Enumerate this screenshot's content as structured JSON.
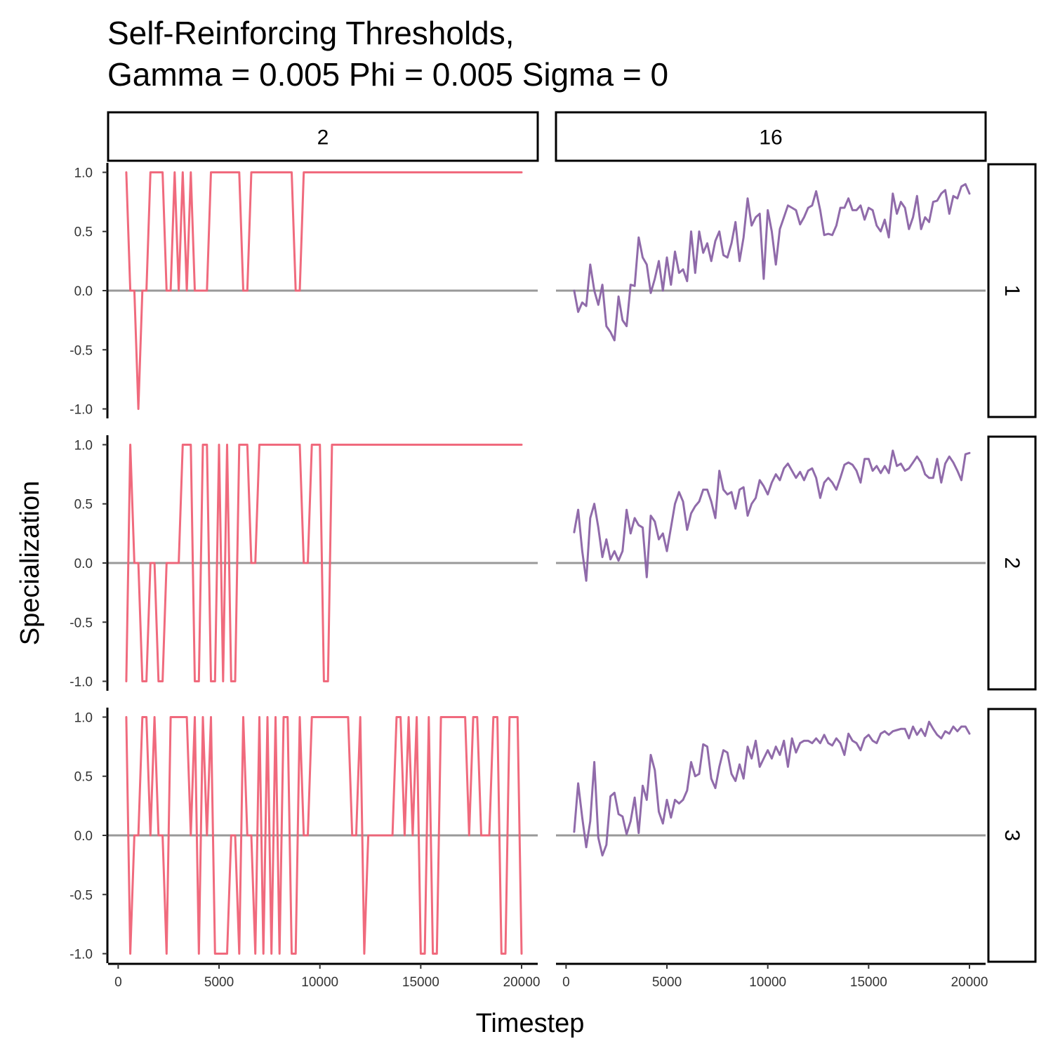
{
  "chart_data": {
    "type": "line",
    "title_lines": [
      "Self-Reinforcing Thresholds,",
      "Gamma = 0.005 Phi =  0.005 Sigma = 0"
    ],
    "xlabel": "Timestep",
    "ylabel": "Specialization",
    "xlim": [
      -500,
      20800
    ],
    "ylim": [
      -1.08,
      1.08
    ],
    "x_ticks": [
      0,
      5000,
      10000,
      15000,
      20000
    ],
    "y_ticks": [
      -1.0,
      -0.5,
      0.0,
      0.5,
      1.0
    ],
    "y_tick_labels": [
      "-1.0",
      "-0.5",
      "0.0",
      "0.5",
      "1.0"
    ],
    "reference_line_y": 0,
    "grid": false,
    "legend": "none",
    "col_facets": [
      "2",
      "16"
    ],
    "row_facets": [
      "1",
      "2",
      "3"
    ],
    "colors": {
      "2": "#ef6276",
      "16": "#8a63a5",
      "reference": "#999999"
    },
    "panels": [
      {
        "col": "2",
        "row": "1",
        "x": [
          400,
          600,
          800,
          1000,
          1200,
          1400,
          1600,
          1800,
          2000,
          2200,
          2400,
          2600,
          2800,
          3000,
          3200,
          3400,
          3600,
          3800,
          4000,
          4200,
          4400,
          4600,
          4800,
          5000,
          5200,
          5400,
          5600,
          5800,
          6000,
          6200,
          6400,
          6600,
          6800,
          7000,
          7200,
          7400,
          7600,
          7800,
          8000,
          8200,
          8400,
          8600,
          8800,
          9000,
          9200,
          9400,
          20000
        ],
        "y": [
          1,
          0,
          0,
          -1,
          0,
          0,
          1,
          1,
          1,
          1,
          0,
          0,
          1,
          0,
          1,
          0,
          1,
          0,
          0,
          0,
          0,
          1,
          1,
          1,
          1,
          1,
          1,
          1,
          1,
          0,
          0,
          1,
          1,
          1,
          1,
          1,
          1,
          1,
          1,
          1,
          1,
          1,
          0,
          0,
          1,
          1,
          1
        ]
      },
      {
        "col": "2",
        "row": "2",
        "x": [
          400,
          600,
          800,
          1000,
          1200,
          1400,
          1600,
          1800,
          2000,
          2200,
          2400,
          2600,
          2800,
          3000,
          3200,
          3400,
          3600,
          3800,
          4000,
          4200,
          4400,
          4600,
          4800,
          5000,
          5200,
          5400,
          5600,
          5800,
          6000,
          6200,
          6400,
          6600,
          6800,
          7000,
          7200,
          7400,
          7600,
          7800,
          8000,
          8200,
          8400,
          8600,
          8800,
          9000,
          9200,
          9400,
          9600,
          9800,
          10000,
          10200,
          10400,
          10600,
          20000
        ],
        "y": [
          -1,
          1,
          0,
          0,
          -1,
          -1,
          0,
          0,
          -1,
          -1,
          0,
          0,
          0,
          0,
          1,
          1,
          1,
          -1,
          -1,
          1,
          1,
          -1,
          -1,
          1,
          -1,
          1,
          -1,
          -1,
          1,
          1,
          1,
          0,
          0,
          1,
          1,
          1,
          1,
          1,
          1,
          1,
          1,
          1,
          1,
          1,
          0,
          0,
          1,
          1,
          1,
          -1,
          -1,
          1,
          1
        ]
      },
      {
        "col": "2",
        "row": "3",
        "x": [
          400,
          600,
          800,
          1000,
          1200,
          1400,
          1600,
          1800,
          2000,
          2200,
          2400,
          2600,
          2800,
          3000,
          3200,
          3400,
          3600,
          3800,
          4000,
          4200,
          4400,
          4600,
          4800,
          5000,
          5200,
          5400,
          5600,
          5800,
          6000,
          6200,
          6400,
          6600,
          6800,
          7000,
          7200,
          7400,
          7600,
          7800,
          8000,
          8200,
          8400,
          8600,
          8800,
          9000,
          9200,
          9400,
          9600,
          9800,
          10000,
          10200,
          10400,
          10600,
          10800,
          11000,
          11200,
          11400,
          11600,
          11800,
          12000,
          12200,
          12400,
          12600,
          12800,
          13000,
          13200,
          13400,
          13600,
          13800,
          14000,
          14200,
          14400,
          14600,
          14800,
          15000,
          15200,
          15400,
          15600,
          15800,
          16000,
          16200,
          16400,
          16600,
          16800,
          17000,
          17200,
          17400,
          17600,
          17800,
          18000,
          18200,
          18400,
          18600,
          18800,
          19000,
          19200,
          19400,
          19600,
          19800,
          20000
        ],
        "y": [
          1,
          -1,
          0,
          0,
          1,
          1,
          0,
          1,
          0,
          0,
          -1,
          1,
          1,
          1,
          1,
          1,
          0,
          1,
          -1,
          1,
          0,
          1,
          -1,
          -1,
          -1,
          -1,
          0,
          0,
          -1,
          1,
          0,
          0,
          -1,
          1,
          -1,
          1,
          -1,
          1,
          -1,
          1,
          1,
          -1,
          -1,
          1,
          0,
          0,
          1,
          1,
          1,
          1,
          1,
          1,
          1,
          1,
          1,
          1,
          0,
          0,
          1,
          -1,
          0,
          0,
          0,
          0,
          0,
          0,
          0,
          1,
          1,
          0,
          1,
          0,
          1,
          -1,
          -1,
          1,
          -1,
          -1,
          1,
          1,
          1,
          1,
          1,
          1,
          1,
          0,
          1,
          1,
          0,
          0,
          0,
          1,
          1,
          -1,
          -1,
          1,
          1,
          1,
          -1
        ]
      },
      {
        "col": "16",
        "row": "1",
        "x": [
          400,
          600,
          800,
          1000,
          1200,
          1400,
          1600,
          1800,
          2000,
          2200,
          2400,
          2600,
          2800,
          3000,
          3200,
          3400,
          3600,
          3800,
          4000,
          4200,
          4400,
          4600,
          4800,
          5000,
          5200,
          5400,
          5600,
          5800,
          6000,
          6200,
          6400,
          6600,
          6800,
          7000,
          7200,
          7400,
          7600,
          7800,
          8000,
          8200,
          8400,
          8600,
          8800,
          9000,
          9200,
          9400,
          9600,
          9800,
          10000,
          10200,
          10400,
          10600,
          10800,
          11000,
          11200,
          11400,
          11600,
          11800,
          12000,
          12200,
          12400,
          12600,
          12800,
          13000,
          13200,
          13400,
          13600,
          13800,
          14000,
          14200,
          14400,
          14600,
          14800,
          15000,
          15200,
          15400,
          15600,
          15800,
          16000,
          16200,
          16400,
          16600,
          16800,
          17000,
          17200,
          17400,
          17600,
          17800,
          18000,
          18200,
          18400,
          18600,
          18800,
          19000,
          19200,
          19400,
          19600,
          19800,
          20000
        ],
        "y": [
          0.0,
          -0.18,
          -0.1,
          -0.13,
          0.22,
          0.0,
          -0.12,
          0.05,
          -0.3,
          -0.35,
          -0.42,
          -0.05,
          -0.25,
          -0.3,
          0.05,
          0.04,
          0.45,
          0.28,
          0.22,
          -0.02,
          0.1,
          0.25,
          0.0,
          0.28,
          0.05,
          0.33,
          0.15,
          0.18,
          0.08,
          0.5,
          0.15,
          0.5,
          0.32,
          0.4,
          0.25,
          0.42,
          0.5,
          0.3,
          0.28,
          0.4,
          0.58,
          0.25,
          0.45,
          0.78,
          0.55,
          0.62,
          0.65,
          0.1,
          0.68,
          0.5,
          0.22,
          0.52,
          0.62,
          0.72,
          0.7,
          0.68,
          0.56,
          0.62,
          0.7,
          0.72,
          0.84,
          0.68,
          0.47,
          0.48,
          0.47,
          0.55,
          0.7,
          0.7,
          0.78,
          0.68,
          0.68,
          0.72,
          0.6,
          0.7,
          0.68,
          0.55,
          0.5,
          0.6,
          0.45,
          0.82,
          0.65,
          0.75,
          0.7,
          0.52,
          0.62,
          0.8,
          0.52,
          0.62,
          0.58,
          0.75,
          0.76,
          0.82,
          0.85,
          0.65,
          0.8,
          0.78,
          0.88,
          0.9,
          0.82
        ]
      },
      {
        "col": "16",
        "row": "2",
        "x": [
          400,
          600,
          800,
          1000,
          1200,
          1400,
          1600,
          1800,
          2000,
          2200,
          2400,
          2600,
          2800,
          3000,
          3200,
          3400,
          3600,
          3800,
          4000,
          4200,
          4400,
          4600,
          4800,
          5000,
          5200,
          5400,
          5600,
          5800,
          6000,
          6200,
          6400,
          6600,
          6800,
          7000,
          7200,
          7400,
          7600,
          7800,
          8000,
          8200,
          8400,
          8600,
          8800,
          9000,
          9200,
          9400,
          9600,
          9800,
          10000,
          10200,
          10400,
          10600,
          10800,
          11000,
          11200,
          11400,
          11600,
          11800,
          12000,
          12200,
          12400,
          12600,
          12800,
          13000,
          13200,
          13400,
          13600,
          13800,
          14000,
          14200,
          14400,
          14600,
          14800,
          15000,
          15200,
          15400,
          15600,
          15800,
          16000,
          16200,
          16400,
          16600,
          16800,
          17000,
          17200,
          17400,
          17600,
          17800,
          18000,
          18200,
          18400,
          18600,
          18800,
          19000,
          19200,
          19400,
          19600,
          19800,
          20000
        ],
        "y": [
          0.26,
          0.45,
          0.1,
          -0.15,
          0.38,
          0.5,
          0.3,
          0.05,
          0.2,
          0.03,
          0.1,
          0.02,
          0.1,
          0.45,
          0.25,
          0.38,
          0.32,
          0.3,
          -0.12,
          0.4,
          0.35,
          0.2,
          0.25,
          0.1,
          0.3,
          0.5,
          0.6,
          0.52,
          0.28,
          0.42,
          0.48,
          0.52,
          0.62,
          0.62,
          0.52,
          0.38,
          0.78,
          0.62,
          0.58,
          0.6,
          0.46,
          0.62,
          0.64,
          0.4,
          0.5,
          0.55,
          0.7,
          0.65,
          0.58,
          0.68,
          0.75,
          0.7,
          0.8,
          0.84,
          0.78,
          0.72,
          0.77,
          0.7,
          0.78,
          0.8,
          0.72,
          0.55,
          0.68,
          0.72,
          0.68,
          0.62,
          0.72,
          0.83,
          0.85,
          0.83,
          0.78,
          0.68,
          0.88,
          0.88,
          0.78,
          0.82,
          0.76,
          0.82,
          0.76,
          0.95,
          0.82,
          0.84,
          0.78,
          0.8,
          0.85,
          0.9,
          0.85,
          0.75,
          0.72,
          0.72,
          0.88,
          0.68,
          0.84,
          0.9,
          0.85,
          0.78,
          0.7,
          0.92,
          0.93
        ]
      },
      {
        "col": "16",
        "row": "3",
        "x": [
          400,
          600,
          800,
          1000,
          1200,
          1400,
          1600,
          1800,
          2000,
          2200,
          2400,
          2600,
          2800,
          3000,
          3200,
          3400,
          3600,
          3800,
          4000,
          4200,
          4400,
          4600,
          4800,
          5000,
          5200,
          5400,
          5600,
          5800,
          6000,
          6200,
          6400,
          6600,
          6800,
          7000,
          7200,
          7400,
          7600,
          7800,
          8000,
          8200,
          8400,
          8600,
          8800,
          9000,
          9200,
          9400,
          9600,
          9800,
          10000,
          10200,
          10400,
          10600,
          10800,
          11000,
          11200,
          11400,
          11600,
          11800,
          12000,
          12200,
          12400,
          12600,
          12800,
          13000,
          13200,
          13400,
          13600,
          13800,
          14000,
          14200,
          14400,
          14600,
          14800,
          15000,
          15200,
          15400,
          15600,
          15800,
          16000,
          16200,
          16400,
          16600,
          16800,
          17000,
          17200,
          17400,
          17600,
          17800,
          18000,
          18200,
          18400,
          18600,
          18800,
          19000,
          19200,
          19400,
          19600,
          19800,
          20000
        ],
        "y": [
          0.03,
          0.44,
          0.15,
          -0.1,
          0.12,
          0.62,
          -0.02,
          -0.17,
          -0.08,
          0.33,
          0.36,
          0.18,
          0.16,
          0.01,
          0.12,
          0.32,
          0.02,
          0.42,
          0.3,
          0.68,
          0.55,
          0.2,
          0.1,
          0.3,
          0.15,
          0.3,
          0.27,
          0.3,
          0.38,
          0.62,
          0.5,
          0.52,
          0.77,
          0.75,
          0.48,
          0.4,
          0.58,
          0.72,
          0.7,
          0.52,
          0.46,
          0.6,
          0.48,
          0.75,
          0.65,
          0.8,
          0.58,
          0.65,
          0.72,
          0.65,
          0.75,
          0.68,
          0.8,
          0.58,
          0.82,
          0.7,
          0.78,
          0.8,
          0.8,
          0.78,
          0.82,
          0.78,
          0.85,
          0.78,
          0.76,
          0.82,
          0.78,
          0.68,
          0.86,
          0.8,
          0.78,
          0.72,
          0.82,
          0.85,
          0.8,
          0.78,
          0.86,
          0.88,
          0.85,
          0.88,
          0.89,
          0.9,
          0.9,
          0.82,
          0.92,
          0.85,
          0.9,
          0.84,
          0.96,
          0.9,
          0.85,
          0.82,
          0.88,
          0.86,
          0.92,
          0.88,
          0.92,
          0.92,
          0.86
        ]
      }
    ]
  }
}
